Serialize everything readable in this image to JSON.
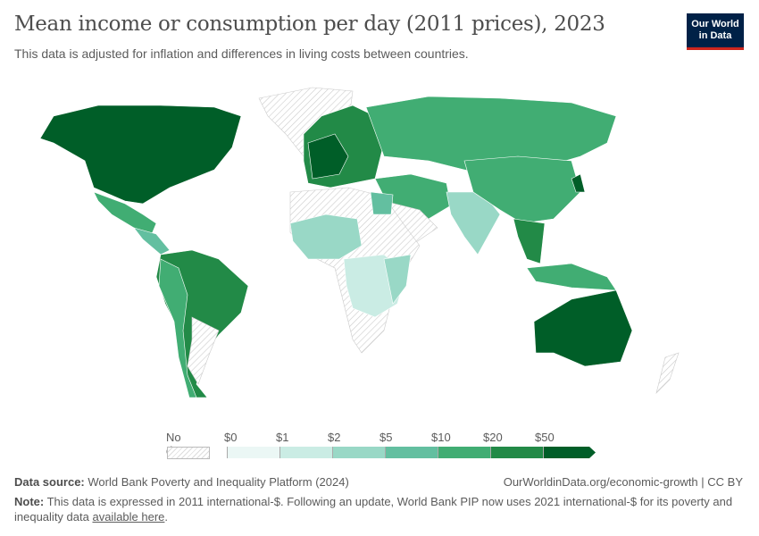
{
  "header": {
    "title": "Mean income or consumption per day (2011 prices), 2023",
    "subtitle": "This data is adjusted for inflation and differences in living costs between countries.",
    "logo": "Our World in Data"
  },
  "legend": {
    "no_data": "No data",
    "ticks": [
      "$0",
      "$1",
      "$2",
      "$5",
      "$10",
      "$20",
      "$50"
    ],
    "colors": [
      "#ebf7f5",
      "#caece4",
      "#99d8c6",
      "#63bfa0",
      "#41ad73",
      "#228a47",
      "#005e28"
    ],
    "no_data_pattern": "hatched-grey"
  },
  "footer": {
    "source_label": "Data source:",
    "source": "World Bank Poverty and Inequality Platform (2024)",
    "url": "OurWorldinData.org/economic-growth | CC BY",
    "note_label": "Note:",
    "note": "This data is expressed in 2011 international-$. Following an update, World Bank PIP now uses 2021 international-$ for its poverty and inequality data",
    "note_link": "available here",
    "note_end": "."
  }
}
